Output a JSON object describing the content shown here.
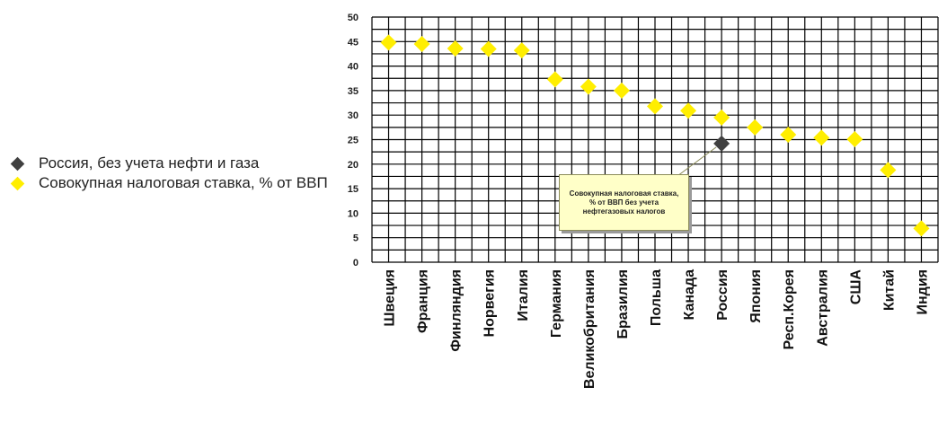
{
  "chart_data": {
    "type": "scatter",
    "title": "",
    "xlabel": "",
    "ylabel": "",
    "ylim": [
      0,
      50
    ],
    "yticks": [
      0,
      5,
      10,
      15,
      20,
      25,
      30,
      35,
      40,
      45,
      50
    ],
    "grid": true,
    "legend_position": "left",
    "categories": [
      "Швеция",
      "Франция",
      "Финляндия",
      "Норвегия",
      "Италия",
      "Германия",
      "Великобритания",
      "Бразилия",
      "Польша",
      "Канада",
      "Россия",
      "Япония",
      "Респ.Корея",
      "Австралия",
      "США",
      "Китай",
      "Индия"
    ],
    "series": [
      {
        "name": "Совокупная налоговая ставка, % от ВВП",
        "color": "#ffee00",
        "marker": "diamond",
        "values": [
          44.8,
          44.5,
          43.6,
          43.5,
          43.2,
          37.3,
          35.8,
          35.0,
          31.8,
          30.9,
          29.5,
          27.5,
          26.0,
          25.4,
          25.1,
          18.8,
          6.9
        ]
      },
      {
        "name": "Россия, без учета нефти и газа",
        "color": "#404040",
        "marker": "diamond",
        "values": [
          null,
          null,
          null,
          null,
          null,
          null,
          null,
          null,
          null,
          null,
          24.2,
          null,
          null,
          null,
          null,
          null,
          null
        ]
      }
    ],
    "annotation": {
      "text": "Совокупная налоговая ставка, % от ВВП без учета нефтегазовых налогов",
      "target_category": "Россия",
      "target_value": 24.2
    }
  }
}
